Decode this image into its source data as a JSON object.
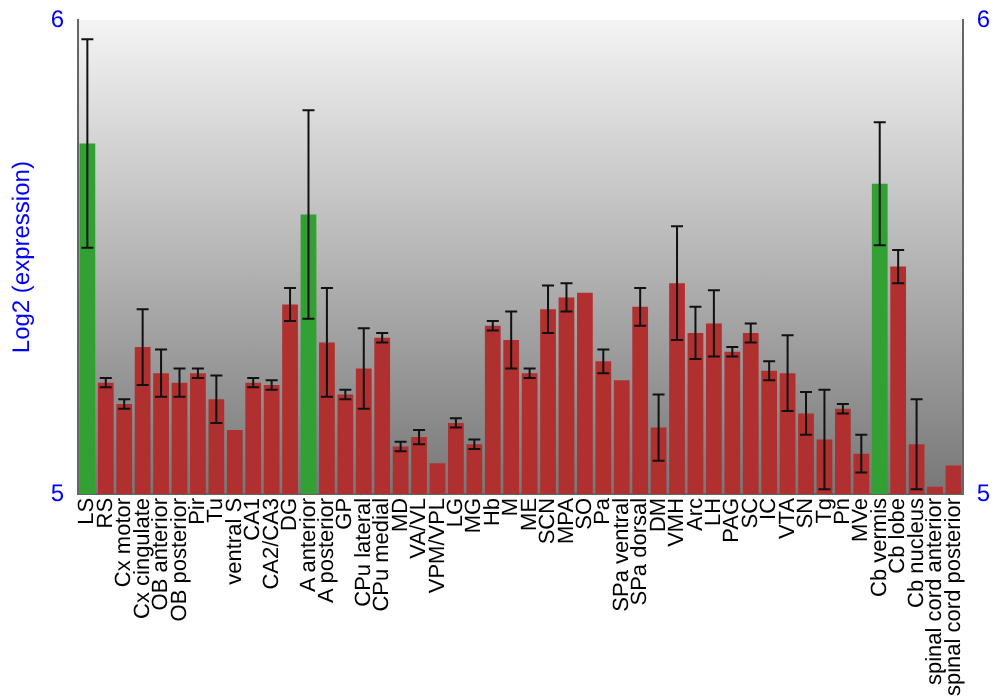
{
  "chart_data": {
    "type": "bar",
    "ylabel": "Log2 (expression)",
    "categories": [
      "LS",
      "RS",
      "Cx motor",
      "Cx cingulate",
      "OB anterior",
      "OB posterior",
      "Pir",
      "Tu",
      "ventral S",
      "CA1",
      "CA2/CA3",
      "DG",
      "A anterior",
      "A posterior",
      "GP",
      "CPu lateral",
      "CPu medial",
      "MD",
      "VA/VL",
      "VPM/VPL",
      "LG",
      "MG",
      "Hb",
      "M",
      "ME",
      "SCN",
      "MPA",
      "SO",
      "Pa",
      "SPa ventral",
      "SPa dorsal",
      "DM",
      "VMH",
      "Arc",
      "LH",
      "PAG",
      "SC",
      "IC",
      "VTA",
      "SN",
      "Tg",
      "Pn",
      "MVe",
      "Cb vermis",
      "Cb lobe",
      "Cb nucleus",
      "spinal cord anterior",
      "spinal cord posterior"
    ],
    "values": [
      5.74,
      5.235,
      5.19,
      5.31,
      5.255,
      5.235,
      5.255,
      5.2,
      5.135,
      5.235,
      5.23,
      5.4,
      5.59,
      5.32,
      5.21,
      5.265,
      5.33,
      5.1,
      5.12,
      5.065,
      5.15,
      5.105,
      5.355,
      5.325,
      5.255,
      5.39,
      5.415,
      5.425,
      5.28,
      5.24,
      5.395,
      5.14,
      5.445,
      5.34,
      5.36,
      5.3,
      5.34,
      5.26,
      5.255,
      5.17,
      5.115,
      5.18,
      5.085,
      5.655,
      5.48,
      5.105,
      5.015,
      5.06
    ],
    "errors": [
      0.22,
      0.01,
      0.01,
      0.08,
      0.05,
      0.03,
      0.01,
      0.05,
      null,
      0.01,
      0.01,
      0.035,
      0.22,
      0.115,
      0.01,
      0.085,
      0.01,
      0.01,
      0.015,
      null,
      0.01,
      0.01,
      0.01,
      0.06,
      0.01,
      0.05,
      0.03,
      null,
      0.025,
      null,
      0.04,
      0.07,
      0.12,
      0.055,
      0.07,
      0.01,
      0.02,
      0.02,
      0.08,
      0.045,
      0.105,
      0.01,
      0.04,
      0.13,
      0.035,
      0.095,
      null,
      null
    ],
    "colors": [
      "#33a033",
      "#b03030",
      "#b03030",
      "#b03030",
      "#b03030",
      "#b03030",
      "#b03030",
      "#b03030",
      "#b03030",
      "#b03030",
      "#b03030",
      "#b03030",
      "#33a033",
      "#b03030",
      "#b03030",
      "#b03030",
      "#b03030",
      "#b03030",
      "#b03030",
      "#b03030",
      "#b03030",
      "#b03030",
      "#b03030",
      "#b03030",
      "#b03030",
      "#b03030",
      "#b03030",
      "#b03030",
      "#b03030",
      "#b03030",
      "#b03030",
      "#b03030",
      "#b03030",
      "#b03030",
      "#b03030",
      "#b03030",
      "#b03030",
      "#b03030",
      "#b03030",
      "#b03030",
      "#b03030",
      "#b03030",
      "#b03030",
      "#33a033",
      "#b03030",
      "#b03030",
      "#b03030",
      "#b03030"
    ],
    "ylim": [
      5,
      6
    ],
    "yticks": [
      5,
      6
    ],
    "y2lim": [
      5,
      6
    ],
    "y2ticks": [
      5,
      6
    ],
    "grid": false,
    "legend": false
  }
}
